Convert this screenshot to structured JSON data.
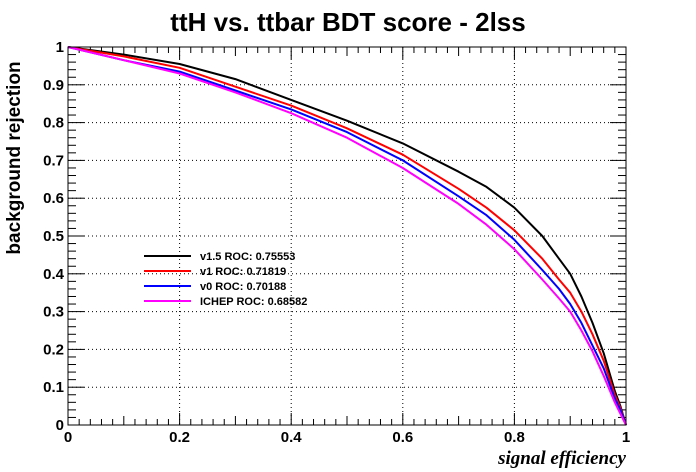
{
  "chart_data": {
    "type": "line",
    "title": "ttH vs. ttbar BDT score - 2lss",
    "xlabel": "signal efficiency",
    "ylabel": "background rejection",
    "xlim": [
      0,
      1
    ],
    "ylim": [
      0,
      1
    ],
    "x_ticks": [
      "0",
      "0.2",
      "0.4",
      "0.6",
      "0.8",
      "1"
    ],
    "y_ticks": [
      "0",
      "0.1",
      "0.2",
      "0.3",
      "0.4",
      "0.5",
      "0.6",
      "0.7",
      "0.8",
      "0.9",
      "1"
    ],
    "grid": true,
    "legend_position": "center-left",
    "series": [
      {
        "name": "v1.5 ROC: 0.75553",
        "color": "#000000",
        "x": [
          0,
          0.1,
          0.2,
          0.3,
          0.4,
          0.5,
          0.6,
          0.7,
          0.75,
          0.8,
          0.85,
          0.88,
          0.9,
          0.92,
          0.94,
          0.96,
          0.98,
          0.99,
          1.0
        ],
        "y": [
          1.0,
          0.98,
          0.955,
          0.915,
          0.86,
          0.805,
          0.745,
          0.67,
          0.63,
          0.575,
          0.5,
          0.44,
          0.4,
          0.34,
          0.27,
          0.19,
          0.09,
          0.05,
          0.0
        ]
      },
      {
        "name": "v1 ROC: 0.71819",
        "color": "#ff0000",
        "x": [
          0,
          0.1,
          0.2,
          0.3,
          0.4,
          0.5,
          0.6,
          0.7,
          0.75,
          0.8,
          0.85,
          0.88,
          0.9,
          0.92,
          0.94,
          0.96,
          0.98,
          0.99,
          1.0
        ],
        "y": [
          1.0,
          0.975,
          0.945,
          0.895,
          0.845,
          0.785,
          0.715,
          0.625,
          0.575,
          0.515,
          0.44,
          0.385,
          0.35,
          0.3,
          0.24,
          0.17,
          0.08,
          0.045,
          0.0
        ]
      },
      {
        "name": "v0 ROC: 0.70188",
        "color": "#0000ff",
        "x": [
          0,
          0.1,
          0.2,
          0.3,
          0.4,
          0.5,
          0.6,
          0.7,
          0.75,
          0.8,
          0.85,
          0.88,
          0.9,
          0.92,
          0.94,
          0.96,
          0.98,
          0.99,
          1.0
        ],
        "y": [
          1.0,
          0.965,
          0.935,
          0.885,
          0.835,
          0.775,
          0.7,
          0.605,
          0.555,
          0.49,
          0.41,
          0.36,
          0.32,
          0.27,
          0.21,
          0.15,
          0.07,
          0.04,
          0.0
        ]
      },
      {
        "name": "ICHEP ROC: 0.68582",
        "color": "#ff00ff",
        "x": [
          0,
          0.1,
          0.2,
          0.3,
          0.4,
          0.5,
          0.6,
          0.7,
          0.75,
          0.8,
          0.85,
          0.88,
          0.9,
          0.92,
          0.94,
          0.96,
          0.98,
          0.99,
          1.0
        ],
        "y": [
          1.0,
          0.965,
          0.93,
          0.88,
          0.825,
          0.76,
          0.68,
          0.585,
          0.53,
          0.465,
          0.385,
          0.335,
          0.3,
          0.25,
          0.195,
          0.13,
          0.06,
          0.03,
          0.0
        ]
      }
    ]
  }
}
